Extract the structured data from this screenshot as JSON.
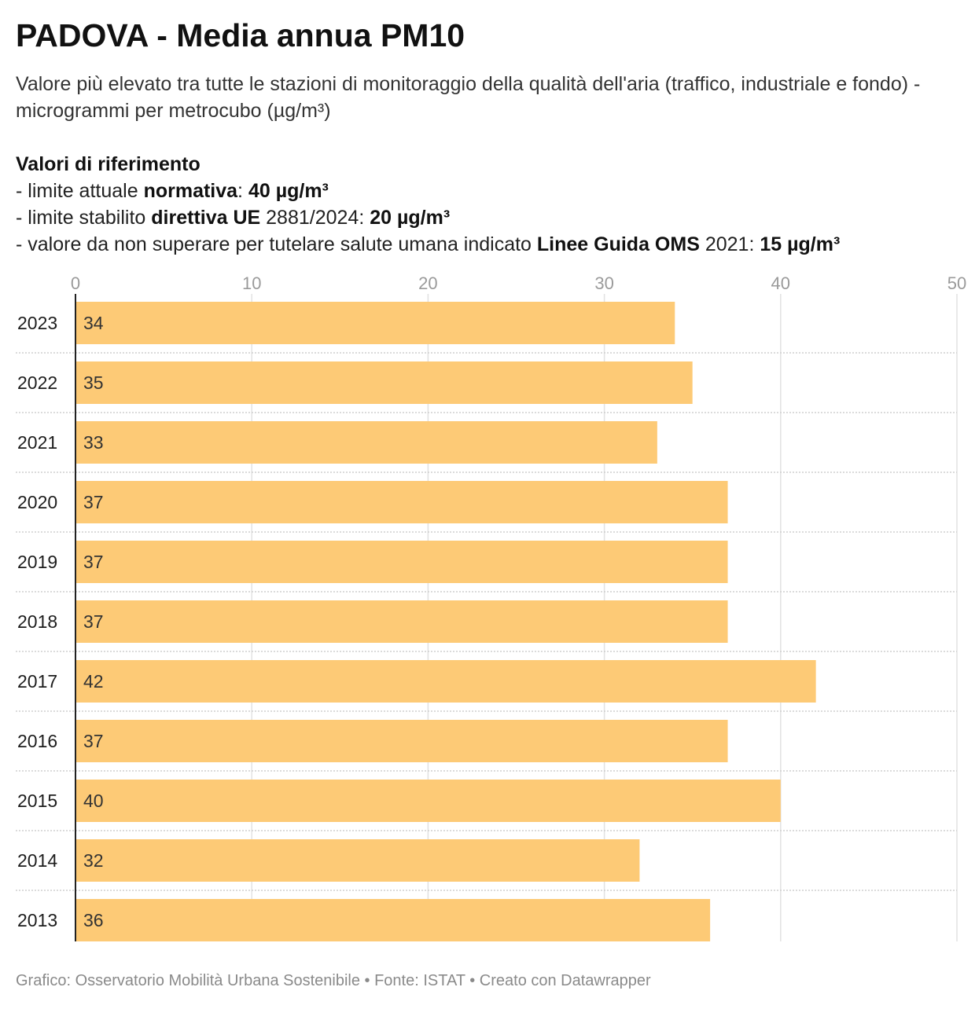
{
  "header": {
    "title": "PADOVA - Media annua PM10",
    "subtitle": "Valore più elevato tra tutte le stazioni di monitoraggio della qualità dell'aria (traffico, industriale e fondo) - microgrammi per metrocubo (µg/m³)"
  },
  "references": {
    "heading": "Valori di riferimento",
    "line1": {
      "prefix": "- limite attuale ",
      "bold": "normativa",
      "mid": ": ",
      "value": "40 µg/m³"
    },
    "line2": {
      "prefix": "- limite stabilito ",
      "bold": "direttiva UE",
      "mid": " 2881/2024: ",
      "value": "20 µg/m³"
    },
    "line3": {
      "prefix": "- valore da non superare per tutelare salute umana indicato ",
      "bold": "Linee Guida OMS",
      "mid": " 2021: ",
      "value": "15 µg/m³"
    }
  },
  "chart_data": {
    "type": "bar",
    "orientation": "horizontal",
    "categories": [
      "2023",
      "2022",
      "2021",
      "2020",
      "2019",
      "2018",
      "2017",
      "2016",
      "2015",
      "2014",
      "2013"
    ],
    "values": [
      34,
      35,
      33,
      37,
      37,
      37,
      42,
      37,
      40,
      32,
      36
    ],
    "xlim": [
      0,
      50
    ],
    "xticks": [
      0,
      10,
      20,
      30,
      40,
      50
    ],
    "xaxis_position": "top",
    "grid": true,
    "data_labels": true,
    "bar_color": "#fdca76"
  },
  "footer": {
    "credit": "Grafico: Osservatorio Mobilità Urbana Sostenibile • Fonte: ISTAT • Creato con Datawrapper"
  }
}
